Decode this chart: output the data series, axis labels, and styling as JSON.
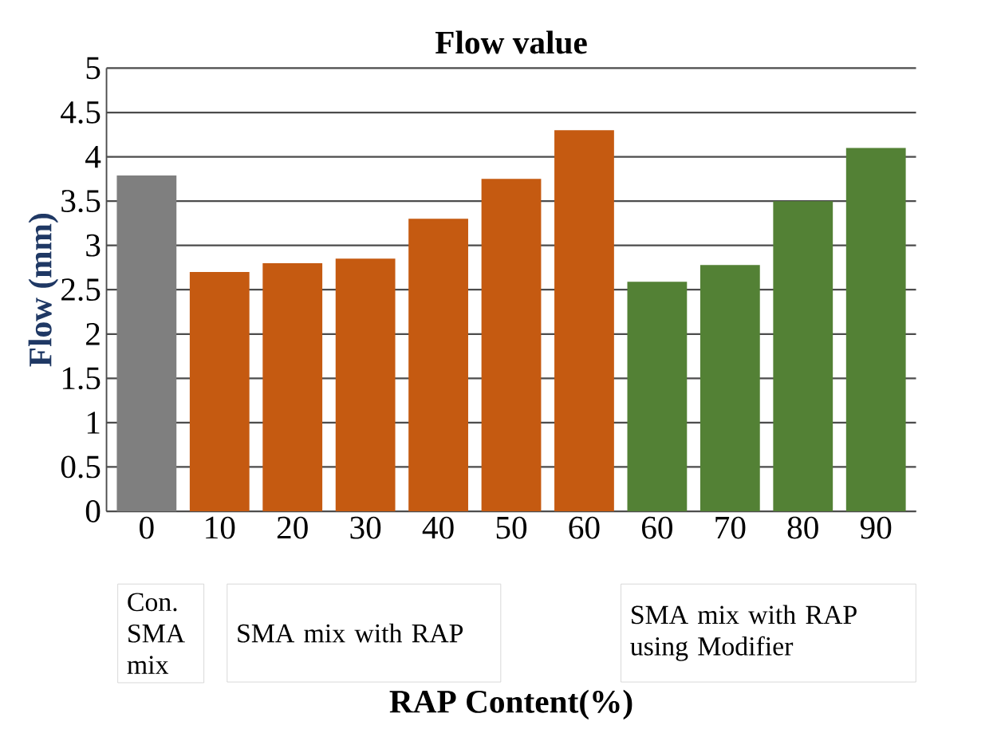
{
  "chart_data": {
    "type": "bar",
    "title": "Flow value",
    "ylabel": "Flow (mm)",
    "xlabel": "RAP Content(%)",
    "categories": [
      "0",
      "10",
      "20",
      "30",
      "40",
      "50",
      "60",
      "60",
      "70",
      "80",
      "90"
    ],
    "values": [
      3.79,
      2.7,
      2.8,
      2.85,
      3.3,
      3.75,
      4.3,
      2.59,
      2.78,
      3.5,
      4.1
    ],
    "colors": [
      "#7f7f7f",
      "#c55a11",
      "#c55a11",
      "#c55a11",
      "#c55a11",
      "#c55a11",
      "#c55a11",
      "#538135",
      "#538135",
      "#538135",
      "#538135"
    ],
    "ylim": [
      0,
      5
    ],
    "yticks": [
      0,
      0.5,
      1,
      1.5,
      2,
      2.5,
      3,
      3.5,
      4,
      4.5,
      5
    ],
    "grid": "y",
    "annotations": [
      "Con. SMA mix",
      "SMA mix with RAP",
      "SMA mix with RAP using Modifier"
    ]
  }
}
